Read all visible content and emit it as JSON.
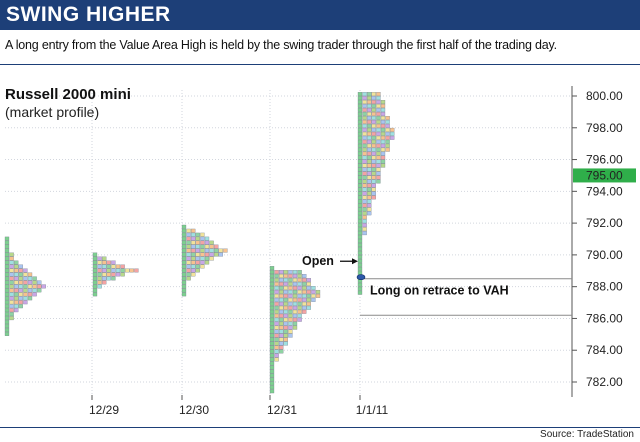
{
  "header": {
    "title": "SWING HIGHER",
    "subtitle": "A long entry from the Value Area High is held by the swing trader through the first half of the trading day."
  },
  "source": "Source: TradeStation",
  "chart_data": {
    "type": "market-profile",
    "title": "Russell 2000 mini",
    "subtitle": "(market profile)",
    "y_ticks": [
      782,
      784,
      786,
      788,
      790,
      792,
      794,
      796,
      798,
      800
    ],
    "y_tick_labels": [
      "782.00",
      "784.00",
      "786.00",
      "788.00",
      "790.00",
      "792.00",
      "794.00",
      "796.00",
      "798.00",
      "800.00"
    ],
    "ylim": [
      781,
      801.2
    ],
    "x_labels": [
      "12/29",
      "12/30",
      "12/31",
      "1/1/11"
    ],
    "last_price": 795.0,
    "last_price_label": "795.00",
    "last_price_color": "#2fae4a",
    "grid": true,
    "reference_lines": [
      788.5,
      786.2
    ],
    "sessions": [
      {
        "date": "",
        "low": 785.0,
        "high": 791.0,
        "peak": 788.0,
        "max_width": 9
      },
      {
        "date": "12/29",
        "low": 787.5,
        "high": 790.0,
        "peak": 789.0,
        "max_width": 10
      },
      {
        "date": "12/30",
        "low": 787.5,
        "high": 791.8,
        "peak": 790.2,
        "max_width": 10
      },
      {
        "date": "12/31",
        "low": 781.4,
        "high": 789.2,
        "peak": 787.5,
        "max_width": 11
      },
      {
        "date": "1/1/11",
        "low": 787.6,
        "high": 800.2,
        "peak": 797.6,
        "max_width": 8
      }
    ],
    "annotations": [
      {
        "text": "Open",
        "price": 789.6
      },
      {
        "text": "Long on retrace to VAH",
        "price": 788.2
      }
    ],
    "entry_marker_price": 788.6
  }
}
